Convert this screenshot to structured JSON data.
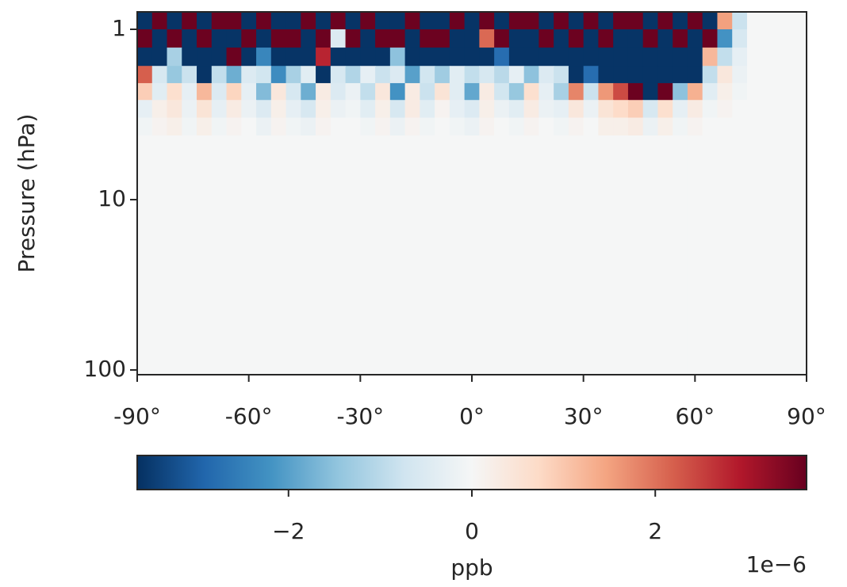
{
  "chart_data": {
    "type": "heatmap",
    "ylabel": "Pressure (hPa)",
    "colorbar_label": "ppb",
    "colorbar_offset": "1e−6",
    "log_y": true,
    "xlim": [
      -90,
      90
    ],
    "ylim": [
      106.6,
      0.79
    ],
    "xticks": [
      {
        "value": -90,
        "label": "-90°"
      },
      {
        "value": -60,
        "label": "-60°"
      },
      {
        "value": -30,
        "label": "-30°"
      },
      {
        "value": 0,
        "label": "0°"
      },
      {
        "value": 30,
        "label": "30°"
      },
      {
        "value": 60,
        "label": "60°"
      },
      {
        "value": 90,
        "label": "90°"
      }
    ],
    "yticks": [
      1,
      10,
      100
    ],
    "zlim": [
      -3.65,
      3.65
    ],
    "zticks": [
      {
        "value": -2,
        "label": "−2"
      },
      0,
      2
    ],
    "colormap": [
      "#053061",
      "#2166ac",
      "#4393c3",
      "#92c5de",
      "#d1e5f0",
      "#f5f6f6",
      "#fddbc7",
      "#f4a582",
      "#d6604d",
      "#b2182b",
      "#67001f"
    ],
    "lat_edges": [
      -90,
      -86,
      -82,
      -78,
      -74,
      -70,
      -66,
      -62,
      -58,
      -54,
      -50,
      -46,
      -42,
      -38,
      -34,
      -30,
      -26,
      -22,
      -18,
      -14,
      -10,
      -6,
      -2,
      2,
      6,
      10,
      14,
      18,
      22,
      26,
      30,
      34,
      38,
      42,
      46,
      50,
      54,
      58,
      62,
      66,
      70,
      74,
      78,
      82,
      86,
      90
    ],
    "pressure_edges": [
      0.79,
      1,
      1.28,
      1.64,
      2.07,
      2.6,
      3.3,
      4.2,
      106.6
    ],
    "z": [
      [
        -3.6,
        3.6,
        -3.6,
        3.6,
        -3.6,
        3.6,
        3.6,
        -3.6,
        3.6,
        -3.6,
        -3.6,
        3.6,
        -3.6,
        3.6,
        -3.6,
        3.6,
        -3.6,
        -3.6,
        3.6,
        -3.6,
        -3.6,
        3.6,
        -3.6,
        3.6,
        -3.6,
        3.6,
        3.6,
        -3.6,
        3.6,
        -3.6,
        3.6,
        -3.6,
        3.6,
        3.6,
        -3.6,
        3.6,
        -3.6,
        3.6,
        -3.6,
        1.5,
        -0.8,
        0,
        0,
        0,
        0
      ],
      [
        3.6,
        -3.6,
        3.6,
        -3.6,
        3.6,
        -3.6,
        -3.6,
        3.6,
        -3.6,
        3.6,
        3.6,
        -3.6,
        3.6,
        -0.5,
        3.6,
        -3.6,
        3.6,
        3.6,
        -3.6,
        3.6,
        3.6,
        -3.6,
        -3.6,
        2.1,
        3.6,
        -3.6,
        -3.6,
        3.6,
        -3.6,
        3.6,
        -3.6,
        3.6,
        -3.6,
        -3.6,
        3.6,
        -3.6,
        3.6,
        -3.6,
        3.6,
        -2.2,
        -0.6,
        0,
        0,
        0,
        0
      ],
      [
        -3.6,
        -3.6,
        -1.2,
        -3.6,
        -3.6,
        -3.6,
        3.6,
        -3.6,
        -2.4,
        -3.6,
        -3.6,
        -3.6,
        2.8,
        -3.6,
        -3.6,
        -3.6,
        -3.6,
        -1.5,
        -3.6,
        -3.6,
        -3.6,
        -3.6,
        -3.6,
        -3.6,
        -2.8,
        -3.6,
        -3.6,
        -3.6,
        -3.6,
        -3.6,
        -3.6,
        -3.6,
        -3.6,
        -3.6,
        -3.6,
        -3.6,
        -3.6,
        -3.6,
        1.2,
        -0.9,
        -0.3,
        0,
        0,
        0,
        0
      ],
      [
        2.2,
        -0.6,
        -1.4,
        -0.8,
        -3.6,
        -0.9,
        -1.8,
        -0.5,
        -0.7,
        -2.3,
        -1.2,
        -0.4,
        -3.6,
        -0.6,
        -1.1,
        -0.3,
        -0.8,
        -0.5,
        -2.0,
        -0.7,
        -1.3,
        -0.4,
        -0.9,
        -0.6,
        -1.0,
        -0.3,
        -1.5,
        -0.5,
        -0.8,
        -3.6,
        -2.8,
        -3.6,
        -3.6,
        -3.6,
        -3.6,
        -3.6,
        -3.6,
        -3.6,
        -0.9,
        0.4,
        -0.2,
        0,
        0,
        0,
        0
      ],
      [
        0.9,
        -0.4,
        0.6,
        -0.3,
        1.2,
        -0.5,
        0.8,
        -0.3,
        -1.6,
        0.4,
        -0.6,
        -1.8,
        0.3,
        -0.5,
        -0.2,
        -0.9,
        0.4,
        -2.2,
        0.3,
        -0.8,
        0.5,
        -0.4,
        -1.9,
        0.3,
        -0.7,
        -1.4,
        0.6,
        -0.3,
        -1.2,
        1.8,
        -0.8,
        1.6,
        2.4,
        3.6,
        -3.6,
        3.6,
        -1.5,
        1.3,
        -0.4,
        0.2,
        -0.1,
        0,
        0,
        0,
        0
      ],
      [
        -0.3,
        0.2,
        0.4,
        -0.2,
        0.5,
        -0.3,
        0.3,
        -0.2,
        -0.5,
        0.2,
        -0.3,
        -0.6,
        0.2,
        -0.2,
        -0.1,
        -0.4,
        0.2,
        -0.6,
        0.3,
        -0.4,
        0.1,
        -0.3,
        -0.5,
        0.2,
        -0.2,
        -0.4,
        0.3,
        -0.2,
        -0.3,
        0.4,
        -0.2,
        0.5,
        0.7,
        0.9,
        -0.6,
        0.6,
        -0.3,
        0.3,
        -0.1,
        0.1,
        0,
        0,
        0,
        0,
        0
      ],
      [
        -0.1,
        0.1,
        0.2,
        -0.1,
        0.2,
        -0.1,
        0.1,
        0,
        -0.2,
        0.1,
        -0.1,
        -0.2,
        0.1,
        0,
        0,
        -0.1,
        0.1,
        -0.2,
        0.1,
        -0.1,
        0,
        -0.1,
        -0.2,
        0.1,
        0,
        -0.1,
        0.1,
        0,
        -0.1,
        0.1,
        0,
        0.2,
        0.2,
        0.3,
        -0.2,
        0.2,
        -0.1,
        0.1,
        0,
        0,
        0,
        0,
        0,
        0,
        0
      ],
      [
        0,
        0,
        0,
        0,
        0,
        0,
        0,
        0,
        0,
        0,
        0,
        0,
        0,
        0,
        0,
        0,
        0,
        0,
        0,
        0,
        0,
        0,
        0,
        0,
        0,
        0,
        0,
        0,
        0,
        0,
        0,
        0,
        0,
        0,
        0,
        0,
        0,
        0,
        0,
        0,
        0,
        0,
        0,
        0,
        0
      ]
    ]
  }
}
